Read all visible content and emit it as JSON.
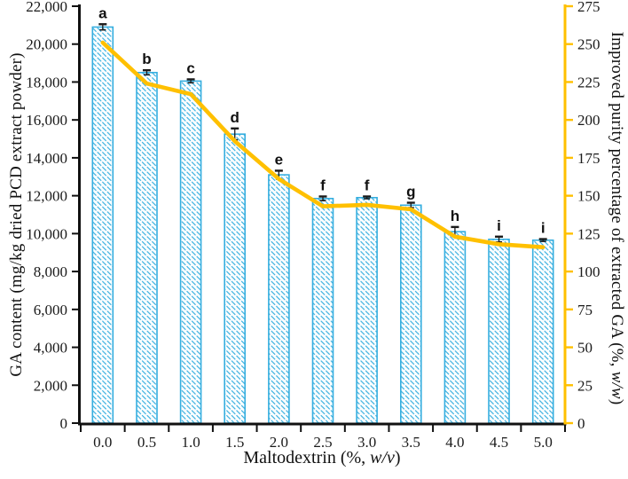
{
  "chart_data": {
    "type": "bar",
    "subtype": "bar-line-combo-dual-axis",
    "categories": [
      "0.0",
      "0.5",
      "1.0",
      "1.5",
      "2.0",
      "2.5",
      "3.0",
      "3.5",
      "4.0",
      "4.5",
      "5.0"
    ],
    "bar_series": {
      "name": "GA content",
      "axis": "left",
      "values": [
        20900,
        18500,
        18050,
        15250,
        13100,
        11850,
        11900,
        11500,
        10100,
        9700,
        9650
      ],
      "error_bars": [
        150,
        120,
        90,
        300,
        220,
        110,
        60,
        130,
        250,
        140,
        60
      ],
      "significance_letters": [
        "a",
        "b",
        "c",
        "d",
        "e",
        "f",
        "f",
        "g",
        "h",
        "i",
        "i"
      ]
    },
    "line_series": {
      "name": "Improved purity percentage of extracted GA",
      "axis": "right",
      "values": [
        251,
        224,
        217,
        186,
        161,
        143,
        144,
        141,
        123,
        118,
        116
      ]
    },
    "xlabel_prefix": "Maltodextrin (%, ",
    "xlabel_italic": "w/v",
    "xlabel_suffix": ")",
    "left_axis": {
      "label": "GA content (mg/kg dried PCD extract powder)",
      "min": 0,
      "max": 22000,
      "step": 2000,
      "tick_labels": [
        "0",
        "2,000",
        "4,000",
        "6,000",
        "8,000",
        "10,000",
        "12,000",
        "14,000",
        "16,000",
        "18,000",
        "20,000",
        "22,000"
      ]
    },
    "right_axis": {
      "label_prefix": "Improved purity percentage of extracted GA (%, ",
      "label_italic": "w/w",
      "label_suffix": ")",
      "min": 0,
      "max": 275,
      "step": 25,
      "tick_labels": [
        "0",
        "25",
        "50",
        "75",
        "100",
        "125",
        "150",
        "175",
        "200",
        "225",
        "250",
        "275"
      ]
    },
    "layout": {
      "grid": false,
      "legend": false,
      "ylim_left": [
        0,
        22000
      ],
      "ylim_right": [
        0,
        275
      ]
    },
    "colors": {
      "bar_hatch": "#35AEDF",
      "line": "#FFC000",
      "right_axis": "#FFC000",
      "axis_black": "#111111",
      "error_bar": "#1a1a1a"
    }
  }
}
